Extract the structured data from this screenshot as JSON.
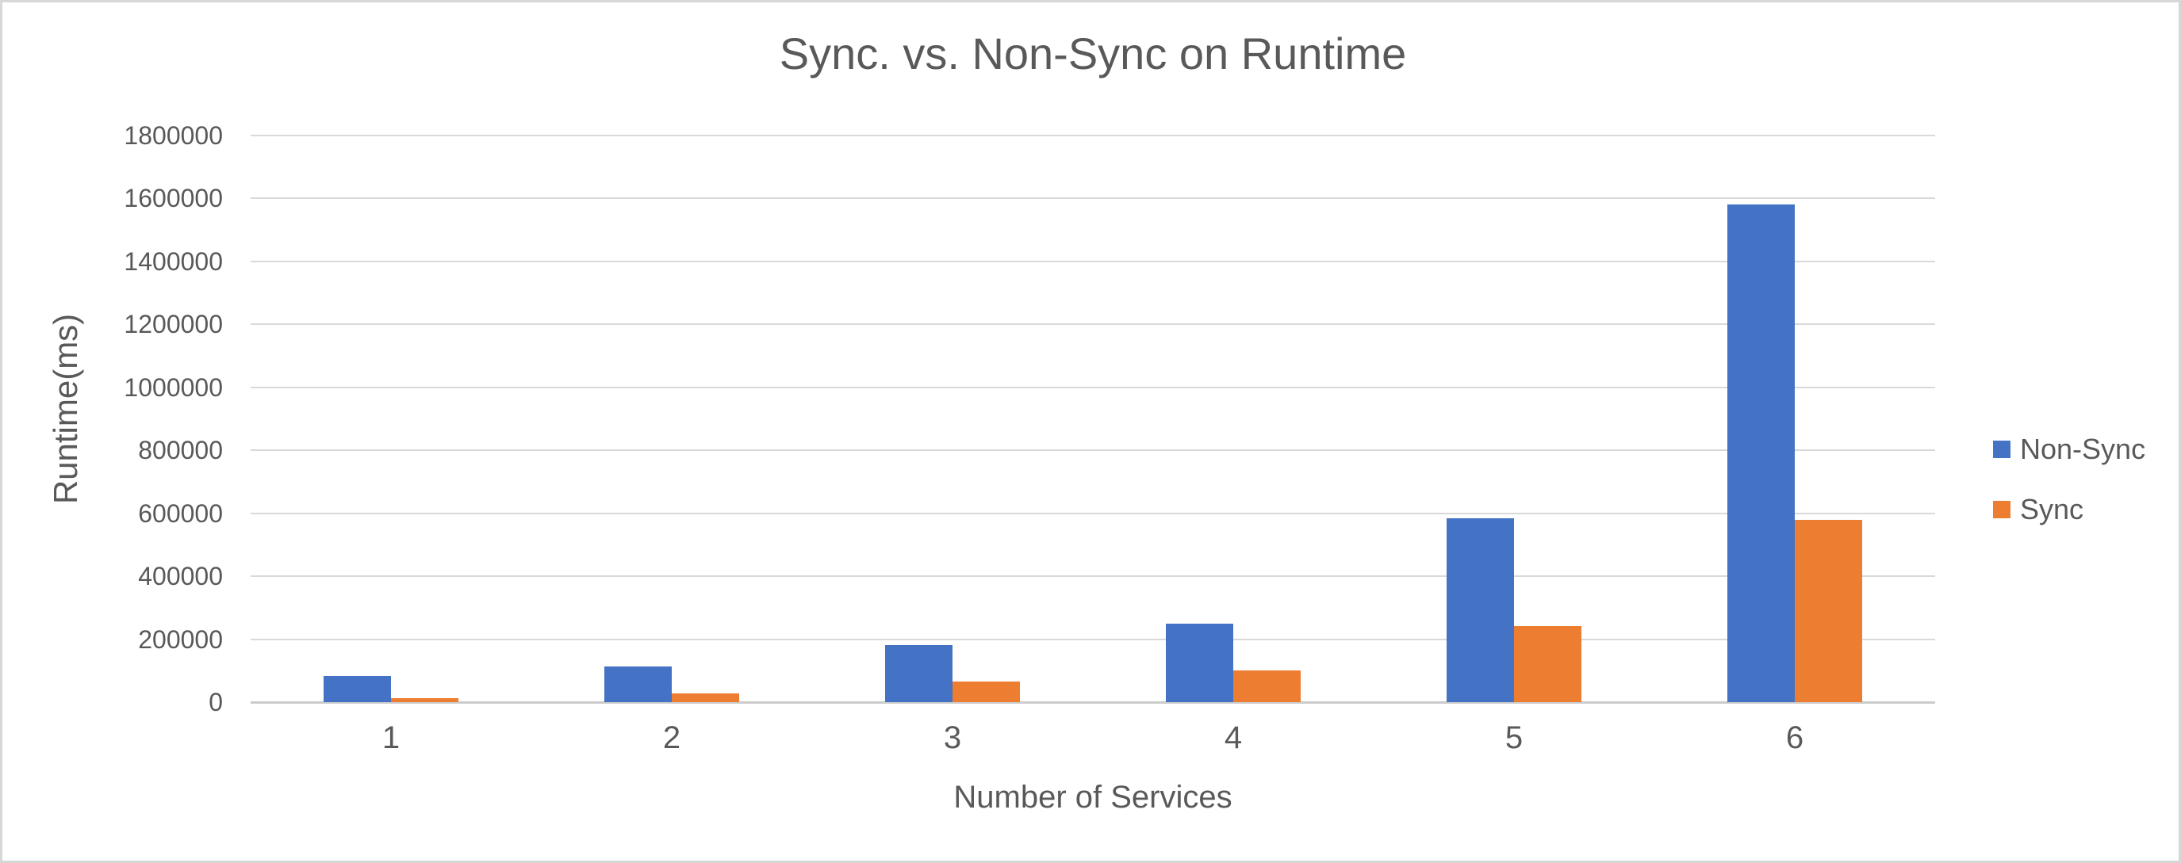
{
  "page": {
    "background_color": "#ffffff",
    "border_color": "#d7d7d7",
    "text_color": "#595959"
  },
  "chart_data": {
    "type": "bar",
    "title": "Sync. vs. Non-Sync on Runtime",
    "xlabel": "Number of Services",
    "ylabel": "Runtime(ms)",
    "categories": [
      "1",
      "2",
      "3",
      "4",
      "5",
      "6"
    ],
    "series": [
      {
        "name": "Non-Sync",
        "color": "#4472C4",
        "values": [
          84000,
          113000,
          181000,
          249000,
          583000,
          1580000
        ]
      },
      {
        "name": "Sync",
        "color": "#ED7D31",
        "values": [
          12500,
          28000,
          65500,
          100500,
          242000,
          579000
        ]
      }
    ],
    "ylim": [
      0,
      1800000
    ],
    "ytick_step": 200000,
    "ytick_labels": [
      "0",
      "200000",
      "400000",
      "600000",
      "800000",
      "1000000",
      "1200000",
      "1400000",
      "1600000",
      "1800000"
    ],
    "grid": true,
    "gridline_color": "#d9d9d9",
    "legend_position": "right",
    "legend": [
      "Non-Sync",
      "Sync"
    ]
  }
}
